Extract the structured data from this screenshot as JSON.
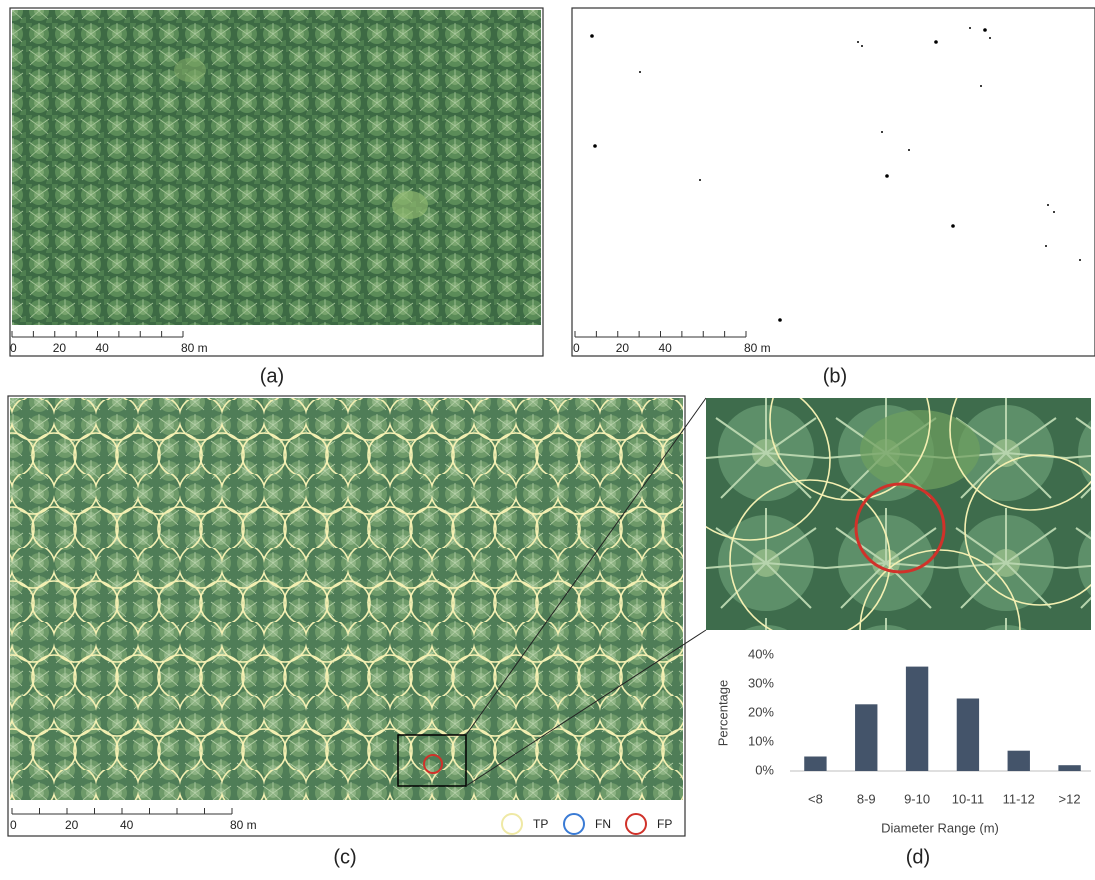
{
  "figure": {
    "panels": [
      {
        "label": "(a)",
        "scale_labels": [
          "0",
          "20",
          "40",
          "80 m"
        ]
      },
      {
        "label": "(b)",
        "scale_labels": [
          "0",
          "20",
          "40",
          "80 m"
        ]
      },
      {
        "label": "(c)",
        "scale_labels": [
          "0",
          "20",
          "40",
          "80 m"
        ]
      }
    ],
    "legend": [
      "TP",
      "FN",
      "FP"
    ]
  },
  "chart_data": {
    "type": "bar",
    "label": "(d)",
    "categories": [
      "<8",
      "8-9",
      "9-10",
      "10-11",
      "11-12",
      ">12"
    ],
    "values": [
      5,
      23,
      36,
      25,
      7,
      2
    ],
    "color": "#44546a",
    "x_label": "Diameter Range (m)",
    "y_label": "Percentage",
    "ylim": [
      0,
      40
    ],
    "yticks": [
      {
        "value": 0,
        "label": "0%"
      },
      {
        "value": 10,
        "label": "10%"
      },
      {
        "value": 20,
        "label": "20%"
      },
      {
        "value": 30,
        "label": "30%"
      },
      {
        "value": 40,
        "label": "40%"
      }
    ]
  }
}
